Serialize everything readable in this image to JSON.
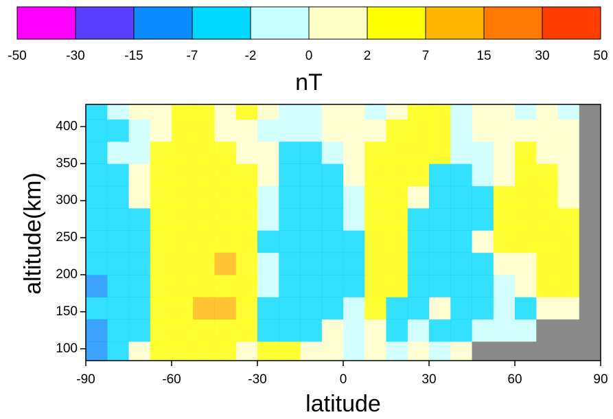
{
  "chart_data": {
    "type": "heatmap",
    "xlabel": "latitude",
    "ylabel": "altitude(km)",
    "xlim": [
      -90,
      90
    ],
    "ylim": [
      84,
      430
    ],
    "xticks": [
      -90,
      -60,
      -30,
      0,
      30,
      60,
      90
    ],
    "yticks": [
      100,
      150,
      200,
      250,
      300,
      350,
      400
    ],
    "null_color": "#8a8a8a",
    "colorbar": {
      "label": "nT",
      "levels": [
        -50,
        -30,
        -15,
        -7,
        -2,
        0,
        2,
        7,
        15,
        30,
        50
      ],
      "colors": [
        "#ff00ff",
        "#5b3fff",
        "#0a8cff",
        "#00d8ff",
        "#c8ffff",
        "#ffffc8",
        "#ffff00",
        "#ffb400",
        "#ff7800",
        "#ff3c00"
      ]
    },
    "x_edges": [
      -90,
      -82.5,
      -75,
      -67.5,
      -60,
      -52.5,
      -45,
      -37.5,
      -30,
      -22.5,
      -15,
      -7.5,
      0,
      7.5,
      15,
      22.5,
      30,
      37.5,
      45,
      52.5,
      60,
      67.5,
      75,
      82.5,
      90
    ],
    "y_edges": [
      84,
      110,
      140,
      170,
      200,
      230,
      260,
      290,
      320,
      350,
      380,
      410,
      430
    ],
    "values": [
      [
        -8,
        -3,
        1,
        3,
        3,
        4,
        3,
        2,
        3,
        3,
        1,
        1,
        -1,
        1,
        0,
        1,
        -1,
        1,
        null,
        null,
        null,
        null,
        null,
        null
      ],
      [
        -8,
        -5,
        -3,
        3,
        4,
        5,
        6,
        3,
        -3,
        -5,
        -4,
        1,
        -1,
        1,
        -3,
        -1,
        -4,
        -3,
        -1,
        -1,
        -1,
        null,
        null,
        null
      ],
      [
        -6,
        -3,
        -4,
        4,
        5,
        8,
        9,
        5,
        -4,
        -5,
        -3,
        -2,
        -1,
        3,
        -4,
        -5,
        1,
        -4,
        -3,
        -1,
        -2,
        1,
        2,
        null
      ],
      [
        -7,
        -4,
        -3,
        4,
        5,
        6,
        5,
        4,
        -1,
        -5,
        -4,
        -3,
        -2,
        3,
        3,
        -4,
        -5,
        -3,
        -4,
        -1,
        1,
        3,
        3,
        null
      ],
      [
        -6,
        -4,
        -5,
        3,
        6,
        7,
        8,
        5,
        -1,
        -6,
        -5,
        -3,
        -3,
        3,
        4,
        -3,
        -6,
        -4,
        -2,
        1,
        2,
        4,
        3,
        null
      ],
      [
        -5,
        -4,
        -3,
        4,
        5,
        6,
        5,
        4,
        -2,
        -5,
        -5,
        -4,
        -2,
        3,
        3,
        -3,
        -5,
        -4,
        1,
        3,
        4,
        4,
        4,
        null
      ],
      [
        -5,
        -3,
        -3,
        3,
        4,
        5,
        4,
        3,
        -1,
        -4,
        -5,
        -3,
        -1,
        3,
        4,
        -2,
        -4,
        -3,
        -2,
        3,
        4,
        3,
        3,
        null
      ],
      [
        -5,
        -3,
        1,
        3,
        3,
        4,
        4,
        3,
        -1,
        -3,
        -4,
        -2,
        -1,
        3,
        4,
        1,
        -4,
        -3,
        -2,
        3,
        3,
        3,
        2,
        null
      ],
      [
        -4,
        -2,
        1,
        3,
        3,
        4,
        4,
        3,
        1,
        -3,
        -3,
        -2,
        1,
        3,
        3,
        5,
        -2,
        -3,
        -1,
        2,
        3,
        3,
        1,
        null
      ],
      [
        -4,
        -1,
        -1,
        3,
        3,
        4,
        3,
        1,
        1,
        -2,
        -3,
        -1,
        1,
        3,
        3,
        4,
        3,
        -1,
        -1,
        1,
        3,
        2,
        1,
        null
      ],
      [
        -4,
        -5,
        -1,
        1,
        3,
        3,
        2,
        1,
        -1,
        -1,
        -1,
        1,
        1,
        1,
        3,
        3,
        3,
        -1,
        1,
        1,
        1,
        1,
        1,
        null
      ],
      [
        -4,
        -1,
        1,
        1,
        3,
        3,
        2,
        3,
        1,
        -1,
        -1,
        1,
        1,
        -1,
        2,
        3,
        3,
        -1,
        1,
        1,
        -1,
        1,
        -1,
        null
      ]
    ]
  }
}
